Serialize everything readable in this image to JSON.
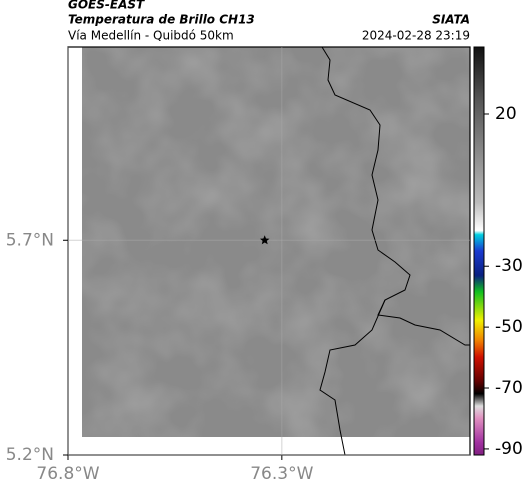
{
  "header": {
    "satellite": "GOES-EAST",
    "product": "Temperatura de Brillo CH13",
    "region": "Vía Medellín - Quibdó 50km",
    "source": "SIATA",
    "datetime": "2024-02-28 23:19"
  },
  "map": {
    "xlim": [
      -76.8,
      -75.86
    ],
    "ylim": [
      5.2,
      6.15
    ],
    "xticks": [
      {
        "value": -76.8,
        "label": "76.8°W"
      },
      {
        "value": -76.3,
        "label": "76.3°W"
      }
    ],
    "yticks": [
      {
        "value": 5.2,
        "label": "5.2°N"
      },
      {
        "value": 5.7,
        "label": "5.7°N"
      }
    ],
    "grid": true,
    "marker": {
      "lon": -76.34,
      "lat": 5.7
    }
  },
  "colorbar": {
    "lim": [
      -92,
      42
    ],
    "ticks": [
      20,
      -30,
      -50,
      -70,
      -90
    ]
  }
}
